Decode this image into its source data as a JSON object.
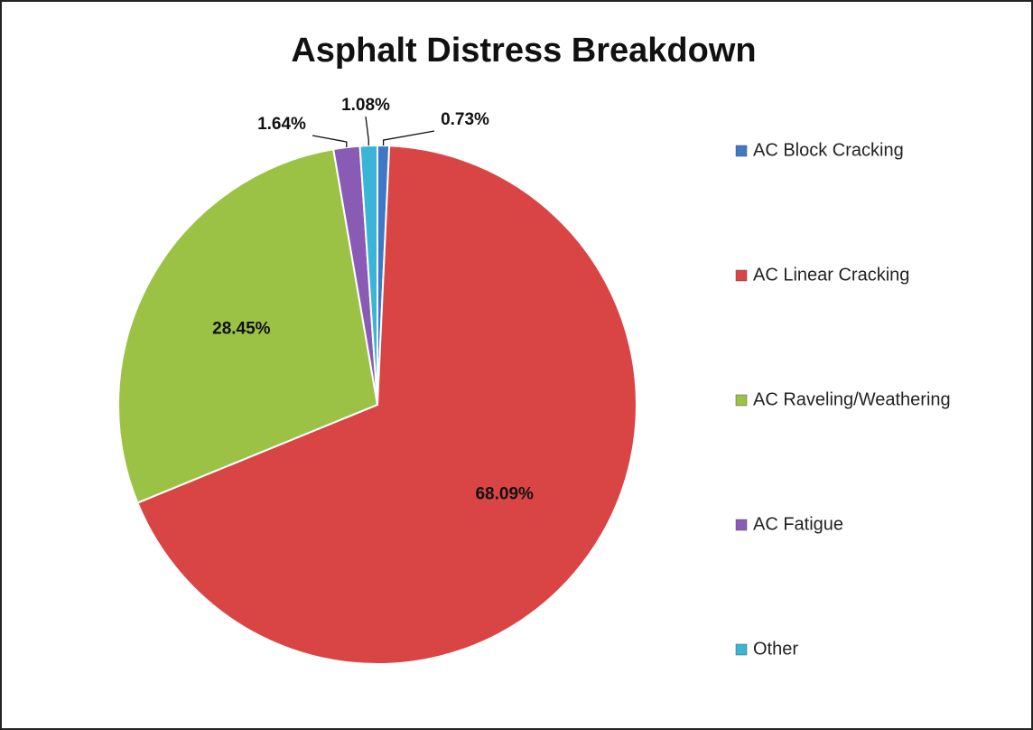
{
  "chart_data": {
    "type": "pie",
    "title": "Asphalt Distress Breakdown",
    "categories": [
      "AC Block Cracking",
      "AC Linear Cracking",
      "AC Raveling/Weathering",
      "AC Fatigue",
      "Other"
    ],
    "values": [
      0.73,
      68.09,
      28.45,
      1.64,
      1.08
    ],
    "value_labels": [
      "0.73%",
      "68.09%",
      "28.45%",
      "1.64%",
      "1.08%"
    ],
    "colors": [
      "#3f78c4",
      "#d94545",
      "#9cc245",
      "#8a5bb5",
      "#3ab5d8"
    ],
    "legend": "right"
  }
}
